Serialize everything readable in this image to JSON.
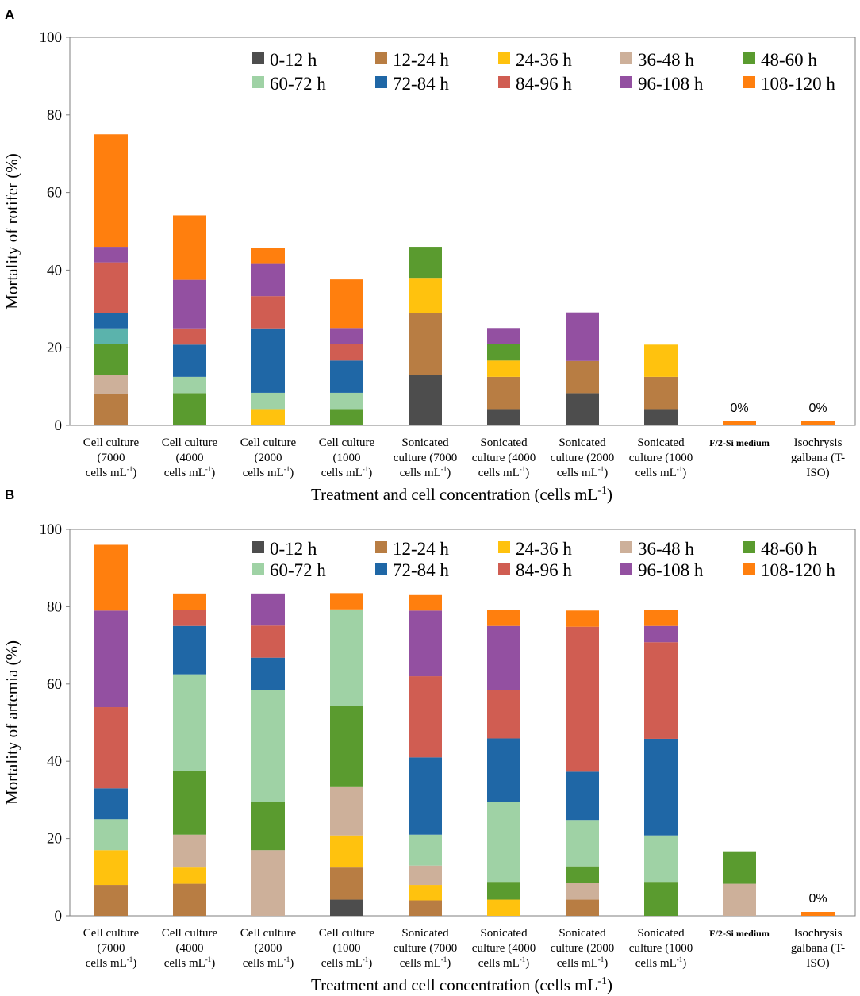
{
  "figure": {
    "panel_letters": [
      "A",
      "B"
    ]
  },
  "chart_data": [
    {
      "type": "stacked-bar",
      "panel": "A",
      "title": "",
      "ylabel": "Mortality of rotifer (%)",
      "xlabel": "Treatment and cell concentration (cells mL",
      "xlabel_sup": "-1",
      "xlabel_end": ")",
      "ylim": [
        0,
        100
      ],
      "yticks": [
        0,
        20,
        40,
        60,
        80,
        100
      ],
      "legend_position": "top-right",
      "categories": [
        [
          "Cell culture",
          "(7000",
          "cells mL^-1)"
        ],
        [
          "Cell culture",
          "(4000",
          "cells mL^-1)"
        ],
        [
          "Cell culture",
          "(2000",
          "cells mL^-1)"
        ],
        [
          "Cell culture",
          "(1000",
          "cells mL^-1)"
        ],
        [
          "Sonicated",
          "culture (7000",
          "cells mL^-1)"
        ],
        [
          "Sonicated",
          "culture (4000",
          "cells mL^-1)"
        ],
        [
          "Sonicated",
          "culture (2000",
          "cells mL^-1)"
        ],
        [
          "Sonicated",
          "culture (1000",
          "cells mL^-1)"
        ],
        [
          "F/2-Si medium"
        ],
        [
          "Isochrysis",
          "galbana (T-",
          "ISO)"
        ]
      ],
      "series": [
        {
          "name": "0-12 h",
          "color": "#4d4d4d",
          "values": [
            0,
            0,
            0,
            0,
            13,
            4.2,
            8.3,
            4.2,
            0,
            0
          ]
        },
        {
          "name": "12-24 h",
          "color": "#b87d43",
          "values": [
            8,
            0,
            0,
            0,
            16,
            8.3,
            8.3,
            8.3,
            0,
            0
          ]
        },
        {
          "name": "24-36 h",
          "color": "#ffc20e",
          "values": [
            0,
            0,
            4.2,
            0,
            9,
            4.2,
            0,
            8.3,
            0,
            0
          ]
        },
        {
          "name": "36-48 h",
          "color": "#cdb09a",
          "values": [
            5,
            0,
            0,
            0,
            0,
            0,
            0,
            0,
            0,
            0
          ]
        },
        {
          "name": "48-60 h",
          "color": "#5a9b2f",
          "values": [
            8,
            8.3,
            0,
            4.2,
            8,
            4.2,
            0,
            0,
            0,
            0
          ]
        },
        {
          "name": "60-72 h",
          "color": "#9fd2a5",
          "values": [
            0,
            4.2,
            4.2,
            4.2,
            0,
            0,
            0,
            0,
            0,
            0
          ]
        },
        {
          "name": "72-84 h",
          "color": "#1f67a6",
          "values": [
            4,
            8.3,
            16.6,
            8.3,
            0,
            0,
            0,
            0,
            0,
            0
          ]
        },
        {
          "name": "84-96 h",
          "color": "#d05d52",
          "values": [
            13,
            4.2,
            8.3,
            4.2,
            0,
            0,
            0,
            0,
            0,
            0
          ]
        },
        {
          "name": "96-108 h",
          "color": "#9350a1",
          "values": [
            4,
            12.5,
            8.3,
            4.2,
            0,
            4.2,
            12.5,
            0,
            0,
            0
          ]
        },
        {
          "name": "108-120 h",
          "color": "#ff7f0e",
          "values": [
            29,
            16.6,
            4.2,
            12.5,
            0,
            0,
            0,
            0,
            0,
            0
          ]
        }
      ],
      "extra_segments": [
        {
          "category_index": 0,
          "after_series": "60-72 h",
          "color": "#5bb3ac",
          "value": 4
        }
      ],
      "zero_markers": [
        {
          "category_index": 8,
          "label": "0%"
        },
        {
          "category_index": 9,
          "label": "0%"
        }
      ]
    },
    {
      "type": "stacked-bar",
      "panel": "B",
      "title": "",
      "ylabel": "Mortality of artemia (%)",
      "xlabel": "Treatment and cell concentration (cells mL",
      "xlabel_sup": "-1",
      "xlabel_end": ")",
      "ylim": [
        0,
        100
      ],
      "yticks": [
        0,
        20,
        40,
        60,
        80,
        100
      ],
      "legend_position": "top-right",
      "categories": [
        [
          "Cell culture",
          "(7000",
          "cells mL^-1)"
        ],
        [
          "Cell culture",
          "(4000",
          "cells mL^-1)"
        ],
        [
          "Cell culture",
          "(2000",
          "cells mL^-1)"
        ],
        [
          "Cell culture",
          "(1000",
          "cells mL^-1)"
        ],
        [
          "Sonicated",
          "culture (7000",
          "cells mL^-1)"
        ],
        [
          "Sonicated",
          "culture (4000",
          "cells mL^-1)"
        ],
        [
          "Sonicated",
          "culture (2000",
          "cells mL^-1)"
        ],
        [
          "Sonicated",
          "culture (1000",
          "cells mL^-1)"
        ],
        [
          "F/2-Si medium"
        ],
        [
          "Isochrysis",
          "galbana (T-",
          "ISO)"
        ]
      ],
      "series": [
        {
          "name": "0-12 h",
          "color": "#4d4d4d",
          "values": [
            0,
            0,
            0,
            4.2,
            0,
            0,
            0,
            0,
            0,
            0
          ]
        },
        {
          "name": "12-24 h",
          "color": "#b87d43",
          "values": [
            8,
            8.3,
            0,
            8.3,
            4,
            0,
            4.2,
            0,
            0,
            0
          ]
        },
        {
          "name": "24-36 h",
          "color": "#ffc20e",
          "values": [
            9,
            4.2,
            0,
            8.3,
            4,
            4.2,
            0,
            0,
            0,
            0
          ]
        },
        {
          "name": "36-48 h",
          "color": "#cdb09a",
          "values": [
            0,
            8.5,
            17,
            12.5,
            5,
            0,
            4.3,
            0,
            8.3,
            0
          ]
        },
        {
          "name": "48-60 h",
          "color": "#5a9b2f",
          "values": [
            0,
            16.5,
            12.5,
            21,
            0,
            4.6,
            4.3,
            8.8,
            8.4,
            0
          ]
        },
        {
          "name": "60-72 h",
          "color": "#9fd2a5",
          "values": [
            8,
            25,
            29,
            25,
            8,
            20.6,
            12,
            12,
            0,
            0
          ]
        },
        {
          "name": "72-84 h",
          "color": "#1f67a6",
          "values": [
            8,
            12.5,
            8.3,
            0,
            20,
            16.5,
            12.5,
            25,
            0,
            0
          ]
        },
        {
          "name": "84-96 h",
          "color": "#d05d52",
          "values": [
            21,
            4.2,
            8.3,
            0,
            21,
            12.5,
            37.5,
            25,
            0,
            0
          ]
        },
        {
          "name": "96-108 h",
          "color": "#9350a1",
          "values": [
            25,
            0,
            8.3,
            0,
            17,
            16.6,
            0,
            4.2,
            0,
            0
          ]
        },
        {
          "name": "108-120 h",
          "color": "#ff7f0e",
          "values": [
            17,
            4.2,
            0,
            4.2,
            4,
            4.2,
            4.2,
            4.2,
            0,
            0
          ]
        }
      ],
      "extra_segments": [],
      "zero_markers": [
        {
          "category_index": 9,
          "label": "0%"
        }
      ]
    }
  ]
}
